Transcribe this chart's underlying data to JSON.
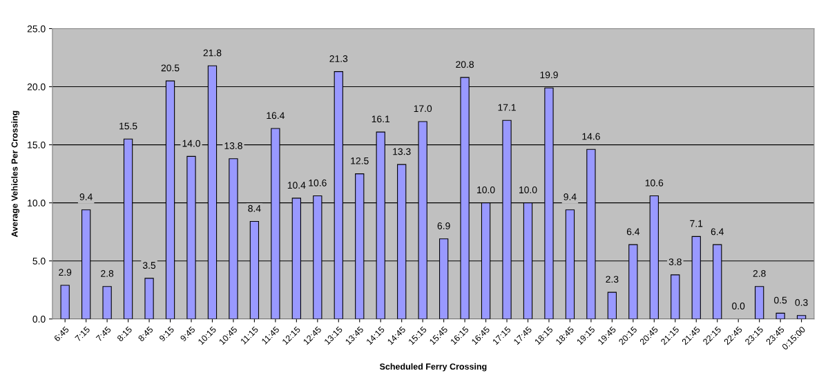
{
  "chart_data": {
    "type": "bar",
    "xlabel": "Scheduled Ferry Crossing",
    "ylabel": "Average Vehicles Per Crossing",
    "categories": [
      "6:45",
      "7:15",
      "7:45",
      "8:15",
      "8:45",
      "9:15",
      "9:45",
      "10:15",
      "10:45",
      "11:15",
      "11:45",
      "12:15",
      "12:45",
      "13:15",
      "13:45",
      "14:15",
      "14:45",
      "15:15",
      "15:45",
      "16:15",
      "16:45",
      "17:15",
      "17:45",
      "18:15",
      "18:45",
      "19:15",
      "19:45",
      "20:15",
      "20:45",
      "21:15",
      "21:45",
      "22:15",
      "22:45",
      "23:15",
      "23:45",
      "0:15:00"
    ],
    "values": [
      2.9,
      9.4,
      2.8,
      15.5,
      3.5,
      20.5,
      14.0,
      21.8,
      13.8,
      8.4,
      16.4,
      10.4,
      10.6,
      21.3,
      12.5,
      16.1,
      13.3,
      17.0,
      6.9,
      20.8,
      10.0,
      17.1,
      10.0,
      19.9,
      9.4,
      14.6,
      2.3,
      6.4,
      10.6,
      3.8,
      7.1,
      6.4,
      0.0,
      2.8,
      0.5,
      0.3
    ],
    "value_labels": [
      "2.9",
      "9.4",
      "2.8",
      "15.5",
      "3.5",
      "20.5",
      "14.0",
      "21.8",
      "13.8",
      "8.4",
      "16.4",
      "10.4",
      "10.6",
      "21.3",
      "12.5",
      "16.1",
      "13.3",
      "17.0",
      "6.9",
      "20.8",
      "10.0",
      "17.1",
      "10.0",
      "19.9",
      "9.4",
      "14.6",
      "2.3",
      "6.4",
      "10.6",
      "3.8",
      "7.1",
      "6.4",
      "0.0",
      "2.8",
      "0.5",
      "0.3"
    ],
    "color": "#9999ff",
    "ylim": [
      0,
      25
    ],
    "yticks": [
      {
        "value": 0,
        "label": "0.0"
      },
      {
        "value": 5,
        "label": "5.0"
      },
      {
        "value": 10,
        "label": "10.0"
      },
      {
        "value": 15,
        "label": "15.0"
      },
      {
        "value": 20,
        "label": "20.0"
      },
      {
        "value": 25,
        "label": "25.0"
      }
    ],
    "grid": "y",
    "legend": false
  }
}
